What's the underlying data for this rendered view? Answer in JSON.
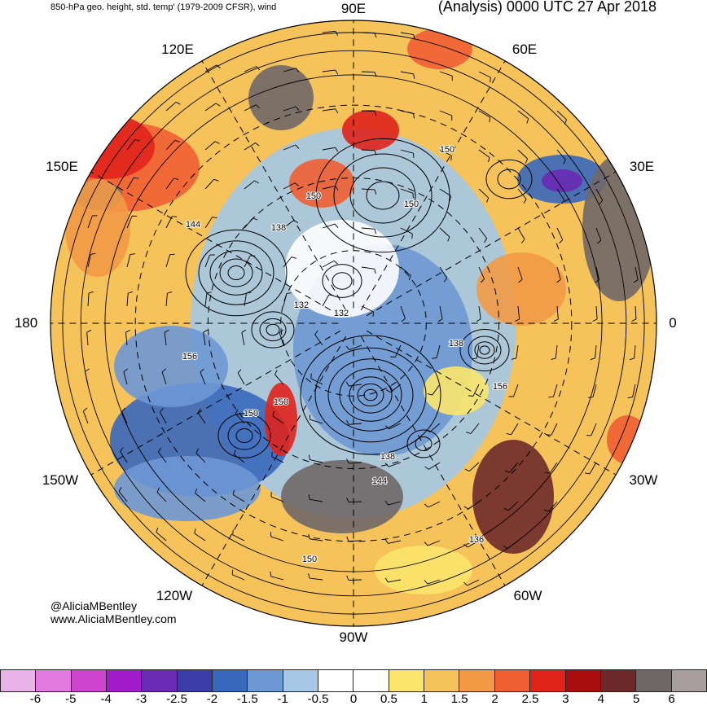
{
  "header": {
    "left_title": "850-hPa geo. height, std. temp' (1979-2009 CFSR), wind",
    "right_title": "(Analysis) 0000 UTC 27 Apr 2018"
  },
  "longitude_labels": [
    "90E",
    "60E",
    "30E",
    "0",
    "30W",
    "60W",
    "90W",
    "120W",
    "150W",
    "180",
    "150E",
    "120E"
  ],
  "contour_labels": [
    "150",
    "144",
    "150",
    "138",
    "150",
    "132",
    "132",
    "138",
    "156",
    "156",
    "150",
    "150",
    "138",
    "144",
    "136",
    "150"
  ],
  "credits": {
    "handle": "@AliciaMBentley",
    "website": "www.AliciaMBentley.com"
  },
  "colorbar": {
    "ticks": [
      "-6",
      "-5",
      "-4",
      "-3",
      "-2.5",
      "-2",
      "-1.5",
      "-1",
      "-0.5",
      "0",
      "0.5",
      "1",
      "1.5",
      "2",
      "2.5",
      "3",
      "4",
      "5",
      "6"
    ],
    "colors": [
      "#e8b4e8",
      "#e27ae2",
      "#cc44cc",
      "#a21ccc",
      "#6a2ab4",
      "#3c3ca8",
      "#3868bc",
      "#6e98d4",
      "#a4c8e6",
      "#ffffff",
      "#ffffff",
      "#fbe56c",
      "#f6c35a",
      "#f29a46",
      "#ef5f32",
      "#e0241c",
      "#a80e0e",
      "#6e2a2a",
      "#706868",
      "#a89e9e"
    ]
  },
  "colors": {
    "land_gray": "#c8c8c8",
    "contour": "#000000"
  }
}
